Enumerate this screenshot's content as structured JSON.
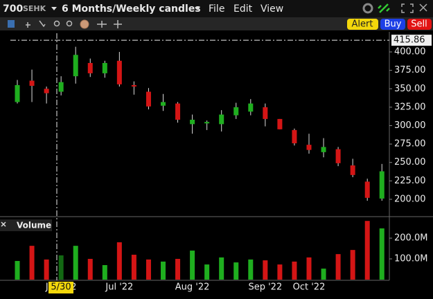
{
  "header": {
    "symbol": "700",
    "exchange": "SEHK",
    "period": "6 Months/Weekly candles",
    "menu": [
      "File",
      "Edit",
      "View"
    ]
  },
  "toolbar": {
    "buttons": [
      "Alert",
      "Buy",
      "Sell"
    ]
  },
  "chart_data": [
    {
      "type": "candlestick",
      "categories": [
        null,
        null,
        null,
        "Jun '22",
        null,
        null,
        null,
        "Jul '22",
        null,
        null,
        null,
        null,
        "Aug '22",
        null,
        null,
        null,
        null,
        "Sep '22",
        null,
        null,
        "Oct '22",
        null,
        null,
        null,
        null,
        null
      ],
      "open": [
        332,
        361,
        350,
        346,
        367,
        385,
        371,
        388,
        355,
        346,
        327,
        330,
        302,
        303,
        302,
        314,
        319,
        325,
        309,
        294,
        274,
        264,
        268,
        246,
        224,
        201
      ],
      "high": [
        362,
        376,
        353,
        367,
        407,
        391,
        388,
        400,
        360,
        351,
        343,
        332,
        315,
        307,
        321,
        331,
        336,
        330,
        309,
        296,
        289,
        283,
        271,
        255,
        228,
        248
      ],
      "low": [
        330,
        332,
        330,
        341,
        357,
        366,
        365,
        353,
        342,
        322,
        320,
        304,
        289,
        294,
        292,
        309,
        314,
        299,
        295,
        273,
        262,
        257,
        245,
        230,
        198,
        198
      ],
      "close": [
        355,
        354,
        344,
        359,
        396,
        371,
        385,
        356,
        353,
        326,
        332,
        308,
        308,
        305,
        315,
        325,
        330,
        309,
        295,
        276,
        267,
        271,
        249,
        233,
        202,
        238
      ],
      "up_color": "#1fae1f",
      "down_color": "#d41515",
      "ylim": [
        179.3,
        423.5
      ],
      "yticks": [
        {
          "value": 200,
          "label": "200.00"
        },
        {
          "value": 225,
          "label": "225.00"
        },
        {
          "value": 250,
          "label": "250.00"
        },
        {
          "value": 275,
          "label": "275.00"
        },
        {
          "value": 300,
          "label": "300.00"
        },
        {
          "value": 325,
          "label": "325.00"
        },
        {
          "value": 350,
          "label": "350.00"
        },
        {
          "value": 375,
          "label": "375.00"
        },
        {
          "value": 400,
          "label": "400.00"
        }
      ],
      "crosshair_price": 415.86,
      "crosshair_date": "5/30"
    },
    {
      "type": "bar",
      "title": "Volume",
      "values": [
        90000000,
        163000000,
        97000000,
        117000000,
        163000000,
        100000000,
        70000000,
        180000000,
        120000000,
        97000000,
        87000000,
        100000000,
        140000000,
        73000000,
        107000000,
        83000000,
        97000000,
        93000000,
        73000000,
        87000000,
        107000000,
        53000000,
        123000000,
        143000000,
        283000000,
        247000000
      ],
      "ylim": [
        0,
        287000000
      ],
      "yticks": [
        {
          "value": 100000000,
          "label": "100.0M"
        },
        {
          "value": 200000000,
          "label": "200.0M"
        }
      ]
    }
  ]
}
